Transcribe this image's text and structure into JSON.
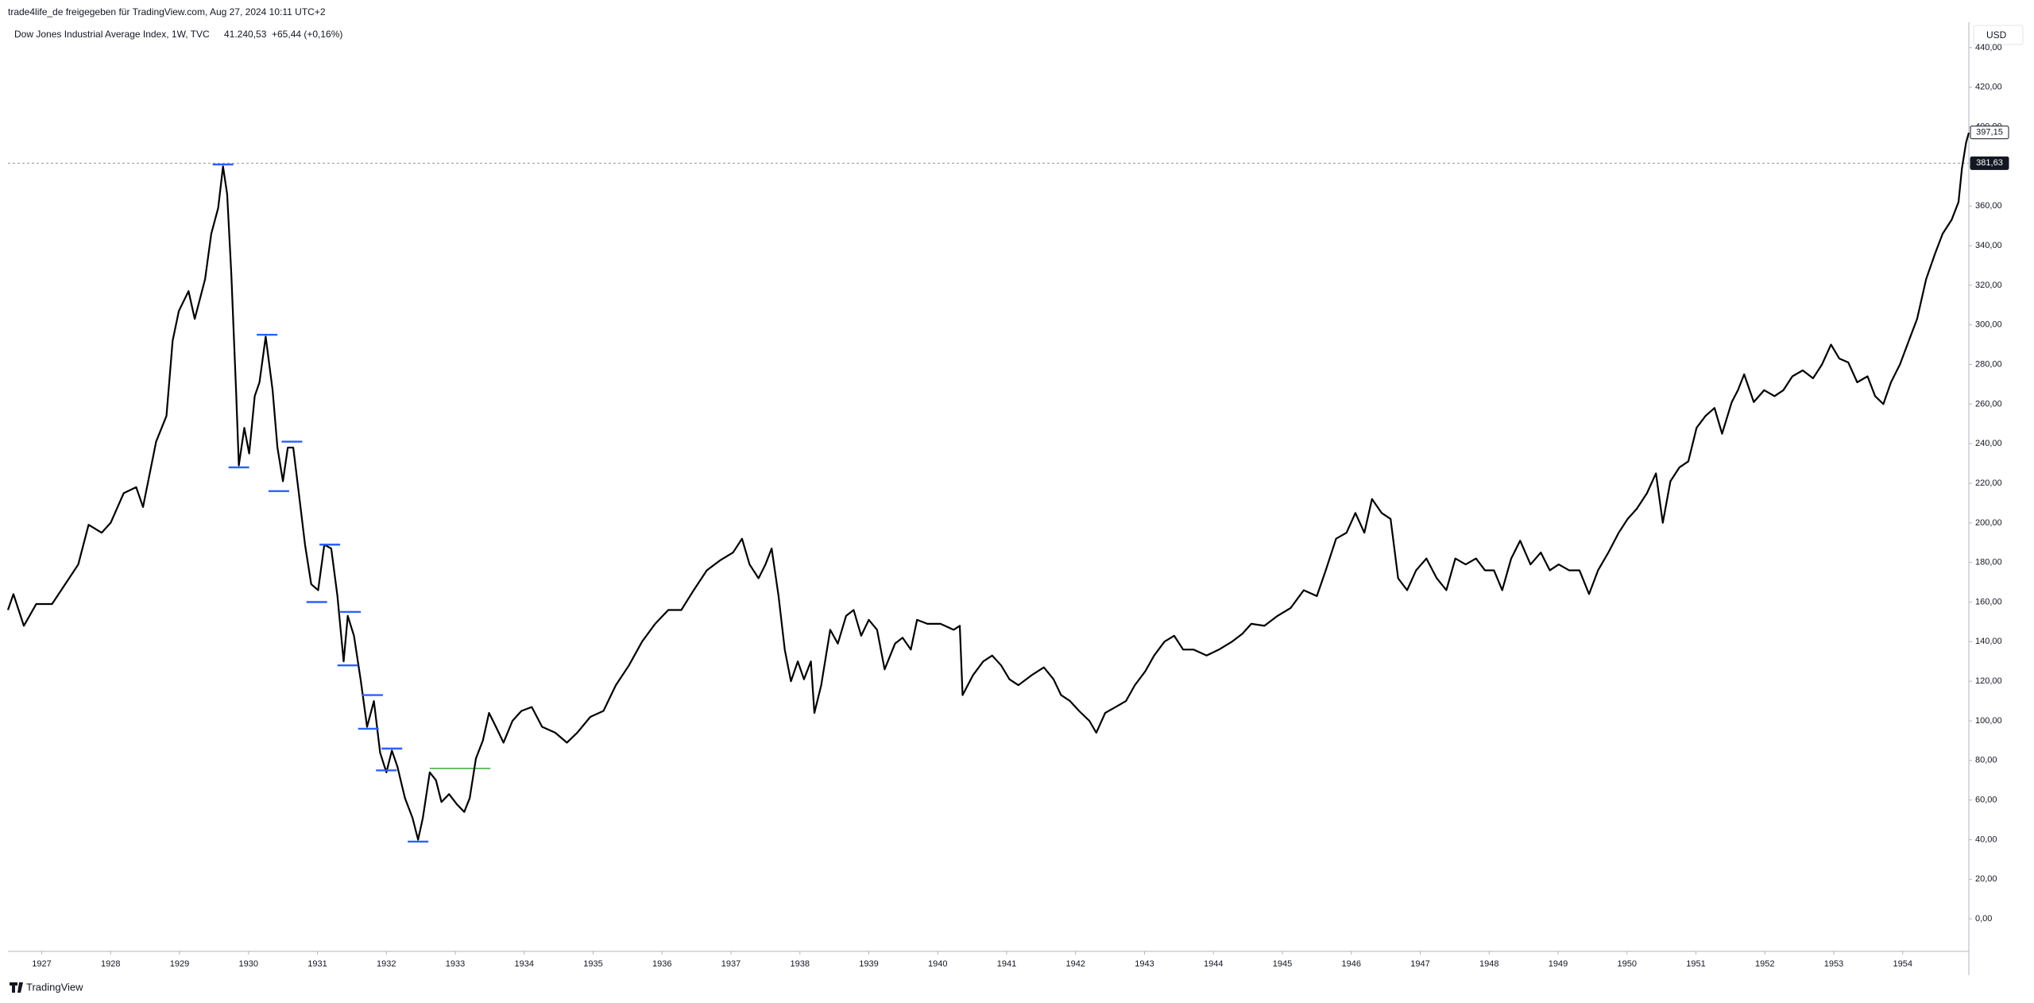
{
  "header": "trade4life_de freigegeben für TradingView.com, Aug 27, 2024 10:11 UTC+2",
  "branding": "TradingView",
  "chart_data": {
    "type": "line",
    "title": "Dow Jones Industrial Average Index, 1W, TVC",
    "last": "41.240,53",
    "change": "+65,44 (+0,16%)",
    "currency": "USD",
    "color": "#000000",
    "x": [
      1926.51,
      1926.59,
      1926.74,
      1926.92,
      1927.15,
      1927.34,
      1927.53,
      1927.68,
      1927.87,
      1928.0,
      1928.19,
      1928.37,
      1928.47,
      1928.66,
      1928.81,
      1928.9,
      1928.99,
      1929.13,
      1929.22,
      1929.37,
      1929.46,
      1929.56,
      1929.63,
      1929.69,
      1929.75,
      1929.82,
      1929.86,
      1929.94,
      1930.01,
      1930.09,
      1930.16,
      1930.25,
      1930.35,
      1930.42,
      1930.5,
      1930.57,
      1930.65,
      1930.73,
      1930.82,
      1930.91,
      1931.01,
      1931.1,
      1931.2,
      1931.29,
      1931.38,
      1931.44,
      1931.53,
      1931.63,
      1931.72,
      1931.82,
      1931.91,
      1932.0,
      1932.08,
      1932.16,
      1932.27,
      1932.38,
      1932.46,
      1932.53,
      1932.63,
      1932.72,
      1932.8,
      1932.91,
      1933.02,
      1933.13,
      1933.21,
      1933.3,
      1933.4,
      1933.49,
      1933.59,
      1933.7,
      1933.83,
      1933.96,
      1934.11,
      1934.26,
      1934.45,
      1934.62,
      1934.77,
      1934.96,
      1935.15,
      1935.33,
      1935.52,
      1935.71,
      1935.9,
      1936.09,
      1936.28,
      1936.46,
      1936.65,
      1936.84,
      1937.03,
      1937.16,
      1937.27,
      1937.4,
      1937.5,
      1937.59,
      1937.69,
      1937.78,
      1937.87,
      1937.97,
      1938.06,
      1938.16,
      1938.21,
      1938.31,
      1938.44,
      1938.55,
      1938.67,
      1938.78,
      1938.89,
      1939.0,
      1939.12,
      1939.23,
      1939.38,
      1939.49,
      1939.61,
      1939.7,
      1939.85,
      1940.04,
      1940.23,
      1940.32,
      1940.36,
      1940.51,
      1940.66,
      1940.79,
      1940.92,
      1941.04,
      1941.17,
      1941.36,
      1941.54,
      1941.68,
      1941.79,
      1941.92,
      1942.05,
      1942.2,
      1942.3,
      1942.43,
      1942.58,
      1942.73,
      1942.86,
      1943.01,
      1943.14,
      1943.29,
      1943.43,
      1943.56,
      1943.71,
      1943.9,
      1944.08,
      1944.27,
      1944.42,
      1944.55,
      1944.74,
      1944.93,
      1945.12,
      1945.31,
      1945.5,
      1945.63,
      1945.78,
      1945.93,
      1946.06,
      1946.19,
      1946.3,
      1946.44,
      1946.57,
      1946.68,
      1946.81,
      1946.94,
      1947.09,
      1947.24,
      1947.38,
      1947.51,
      1947.66,
      1947.81,
      1947.94,
      1948.07,
      1948.19,
      1948.32,
      1948.45,
      1948.6,
      1948.75,
      1948.88,
      1949.01,
      1949.16,
      1949.31,
      1949.45,
      1949.58,
      1949.73,
      1949.88,
      1950.01,
      1950.14,
      1950.29,
      1950.42,
      1950.52,
      1950.63,
      1950.76,
      1950.89,
      1951.01,
      1951.14,
      1951.27,
      1951.38,
      1951.52,
      1951.61,
      1951.7,
      1951.84,
      1951.99,
      1952.14,
      1952.27,
      1952.4,
      1952.55,
      1952.7,
      1952.83,
      1952.96,
      1953.08,
      1953.21,
      1953.34,
      1953.49,
      1953.6,
      1953.72,
      1953.83,
      1953.96,
      1954.09,
      1954.21,
      1954.34,
      1954.47,
      1954.58,
      1954.71,
      1954.81,
      1954.86,
      1954.92,
      1954.96
    ],
    "values": [
      156,
      164,
      148,
      159,
      159,
      169,
      179,
      199,
      195,
      200,
      215,
      218,
      208,
      241,
      254,
      292,
      307,
      317,
      303,
      323,
      346,
      359,
      380,
      366,
      326,
      267,
      229,
      248,
      235,
      264,
      271,
      294,
      267,
      238,
      221,
      238,
      238,
      215,
      189,
      169,
      166,
      189,
      187,
      163,
      130,
      153,
      143,
      120,
      97,
      110,
      84,
      74,
      85,
      77,
      61,
      51,
      40,
      51,
      74,
      70,
      59,
      63,
      58,
      54,
      61,
      81,
      90,
      104,
      97,
      89,
      100,
      105,
      107,
      97,
      94,
      89,
      94,
      102,
      105,
      118,
      128,
      140,
      149,
      156,
      156,
      166,
      176,
      181,
      185,
      192,
      179,
      172,
      179,
      187,
      163,
      136,
      120,
      130,
      121,
      130,
      104,
      118,
      146,
      139,
      153,
      156,
      143,
      151,
      146,
      126,
      139,
      142,
      136,
      151,
      149,
      149,
      146,
      148,
      113,
      123,
      130,
      133,
      128,
      121,
      118,
      123,
      127,
      121,
      113,
      110,
      105,
      100,
      94,
      104,
      107,
      110,
      118,
      125,
      133,
      140,
      143,
      136,
      136,
      133,
      136,
      140,
      144,
      149,
      148,
      153,
      157,
      166,
      163,
      176,
      192,
      195,
      205,
      195,
      212,
      205,
      202,
      172,
      166,
      176,
      182,
      172,
      166,
      182,
      179,
      182,
      176,
      176,
      166,
      182,
      191,
      179,
      185,
      176,
      179,
      176,
      176,
      164,
      176,
      185,
      195,
      202,
      207,
      215,
      225,
      200,
      221,
      228,
      231,
      248,
      254,
      258,
      245,
      261,
      267,
      275,
      261,
      267,
      264,
      267,
      274,
      277,
      273,
      280,
      290,
      283,
      281,
      271,
      274,
      264,
      260,
      271,
      280,
      292,
      303,
      323,
      336,
      346,
      353,
      362,
      379,
      392,
      397
    ],
    "xlim": [
      1926.51,
      1954.96
    ],
    "xticks": [
      1927,
      1928,
      1929,
      1930,
      1931,
      1932,
      1933,
      1934,
      1935,
      1936,
      1937,
      1938,
      1939,
      1940,
      1941,
      1942,
      1943,
      1944,
      1945,
      1946,
      1947,
      1948,
      1949,
      1950,
      1951,
      1952,
      1953,
      1954
    ],
    "ylim": [
      -16.4,
      452.8
    ],
    "yticks": [
      {
        "value": 0,
        "label": "0,00"
      },
      {
        "value": 20,
        "label": "20,00"
      },
      {
        "value": 40,
        "label": "40,00"
      },
      {
        "value": 60,
        "label": "60,00"
      },
      {
        "value": 80,
        "label": "80,00"
      },
      {
        "value": 100,
        "label": "100,00"
      },
      {
        "value": 120,
        "label": "120,00"
      },
      {
        "value": 140,
        "label": "140,00"
      },
      {
        "value": 160,
        "label": "160,00"
      },
      {
        "value": 180,
        "label": "180,00"
      },
      {
        "value": 200,
        "label": "200,00"
      },
      {
        "value": 220,
        "label": "220,00"
      },
      {
        "value": 240,
        "label": "240,00"
      },
      {
        "value": 260,
        "label": "260,00"
      },
      {
        "value": 280,
        "label": "280,00"
      },
      {
        "value": 300,
        "label": "300,00"
      },
      {
        "value": 320,
        "label": "320,00"
      },
      {
        "value": 340,
        "label": "340,00"
      },
      {
        "value": 360,
        "label": "360,00"
      },
      {
        "value": 380,
        "label": "380,00"
      },
      {
        "value": 400,
        "label": "400,00"
      },
      {
        "value": 420,
        "label": "420,00"
      },
      {
        "value": 440,
        "label": "440,00"
      }
    ],
    "grid": false,
    "price_labels": [
      {
        "value": 397.15,
        "label": "397,15"
      },
      {
        "value": 381.63,
        "label": "381,63"
      }
    ],
    "markers": {
      "color": "#2962ff",
      "points": [
        {
          "x": 1929.63,
          "value": 381
        },
        {
          "x": 1929.86,
          "value": 228
        },
        {
          "x": 1930.27,
          "value": 295
        },
        {
          "x": 1930.44,
          "value": 216
        },
        {
          "x": 1930.63,
          "value": 241
        },
        {
          "x": 1930.99,
          "value": 160
        },
        {
          "x": 1931.18,
          "value": 189
        },
        {
          "x": 1931.44,
          "value": 128
        },
        {
          "x": 1931.48,
          "value": 155
        },
        {
          "x": 1931.74,
          "value": 96
        },
        {
          "x": 1931.8,
          "value": 113
        },
        {
          "x": 1932.0,
          "value": 75
        },
        {
          "x": 1932.08,
          "value": 86
        },
        {
          "x": 1932.46,
          "value": 39
        }
      ]
    },
    "level": {
      "color": "#4caf50",
      "x": [
        1932.63,
        1933.51
      ],
      "value": 76
    }
  }
}
